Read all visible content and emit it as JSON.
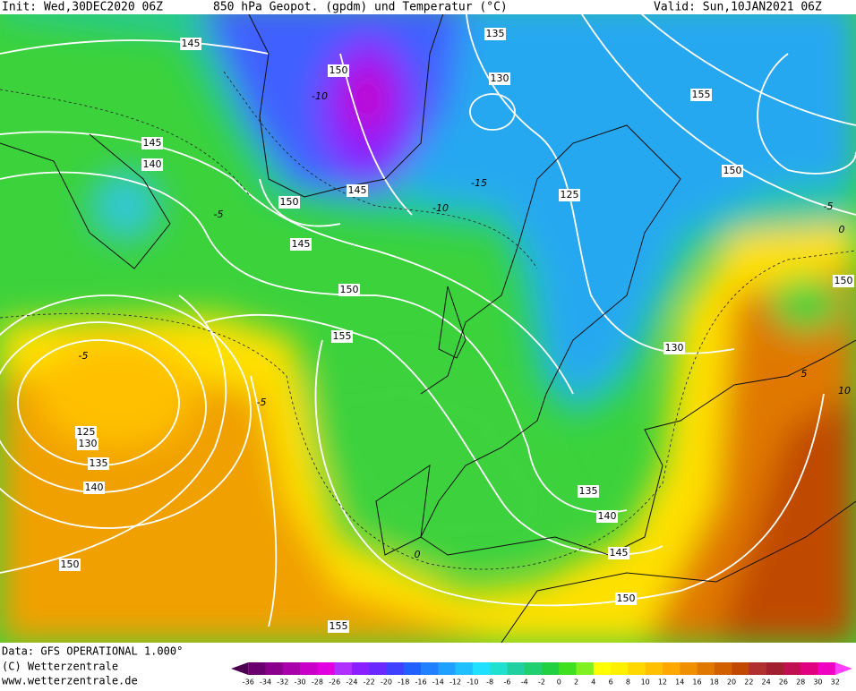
{
  "header": {
    "init": "Init: Wed,30DEC2020 06Z",
    "title": "850 hPa Geopot. (gpdm) und Temperatur (°C)",
    "valid": "Valid: Sun,10JAN2021 06Z"
  },
  "footer": {
    "data": "Data: GFS OPERATIONAL 1.000°",
    "copyright": "(C) Wetterzentrale",
    "url": "www.wetterzentrale.de"
  },
  "geopotential_labels": [
    "145",
    "135",
    "150",
    "130",
    "155",
    "145",
    "140",
    "150",
    "145",
    "125",
    "150",
    "145",
    "150",
    "155",
    "130",
    "125",
    "130",
    "135",
    "140",
    "150",
    "135",
    "140",
    "145",
    "150",
    "155",
    "150"
  ],
  "temperature_labels": [
    "-10",
    "-15",
    "-10",
    "-5",
    "-5",
    "-5",
    "0",
    "0",
    "-5",
    "5",
    "10"
  ],
  "colorbar": {
    "labels": [
      "-36",
      "-34",
      "-32",
      "-30",
      "-28",
      "-26",
      "-24",
      "-22",
      "-20",
      "-18",
      "-16",
      "-14",
      "-12",
      "-10",
      "-8",
      "-6",
      "-4",
      "-2",
      "0",
      "2",
      "4",
      "6",
      "8",
      "10",
      "12",
      "14",
      "16",
      "18",
      "20",
      "22",
      "24",
      "26",
      "28",
      "30",
      "32"
    ],
    "colors": [
      "#4b0050",
      "#6a006e",
      "#8a008c",
      "#a800aa",
      "#c800c8",
      "#e000e0",
      "#b030ff",
      "#8a20ff",
      "#6a2aff",
      "#4040ff",
      "#2060ff",
      "#2080ff",
      "#20a0ff",
      "#20c0ff",
      "#20e0ff",
      "#20e0d0",
      "#20d0a0",
      "#20d070",
      "#20d040",
      "#40e020",
      "#80f020",
      "#ffff00",
      "#fff000",
      "#ffd800",
      "#ffc000",
      "#ffa800",
      "#f09000",
      "#e07800",
      "#d06000",
      "#c04800",
      "#b03030",
      "#a02030",
      "#c01050",
      "#e00080",
      "#f000c0",
      "#ff40ff"
    ]
  }
}
